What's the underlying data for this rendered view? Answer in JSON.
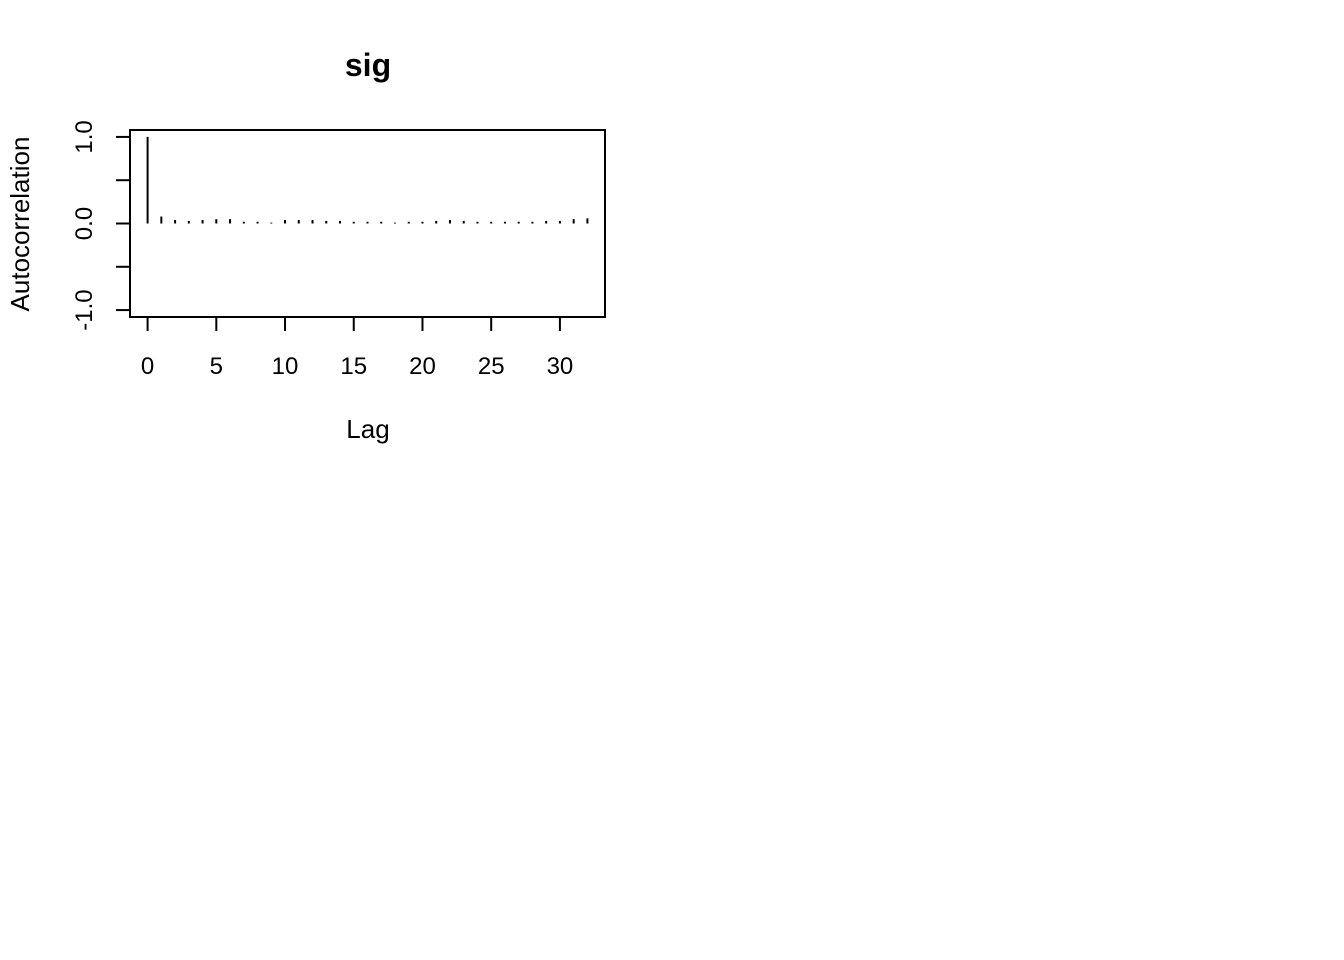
{
  "chart_data": {
    "type": "bar",
    "title": "sig",
    "xlabel": "Lag",
    "ylabel": "Autocorrelation",
    "x": [
      0,
      1,
      2,
      3,
      4,
      5,
      6,
      7,
      8,
      9,
      10,
      11,
      12,
      13,
      14,
      15,
      16,
      17,
      18,
      19,
      20,
      21,
      22,
      23,
      24,
      25,
      26,
      27,
      28,
      29,
      30,
      31,
      32
    ],
    "values": [
      1.0,
      0.08,
      0.04,
      0.03,
      0.04,
      0.05,
      0.05,
      0.02,
      0.02,
      0.01,
      0.04,
      0.04,
      0.04,
      0.03,
      0.03,
      0.02,
      0.02,
      0.02,
      0.01,
      0.02,
      0.02,
      0.03,
      0.04,
      0.03,
      0.02,
      0.02,
      0.02,
      0.02,
      0.02,
      0.03,
      0.03,
      0.05,
      0.06
    ],
    "xticks": [
      "0",
      "5",
      "10",
      "15",
      "20",
      "25",
      "30"
    ],
    "yticks": [
      "-1.0",
      "0.0",
      "1.0"
    ],
    "xlim": [
      -1.28,
      33.28
    ],
    "ylim": [
      -1.08,
      1.08
    ],
    "grid": false,
    "color": "#000000"
  }
}
